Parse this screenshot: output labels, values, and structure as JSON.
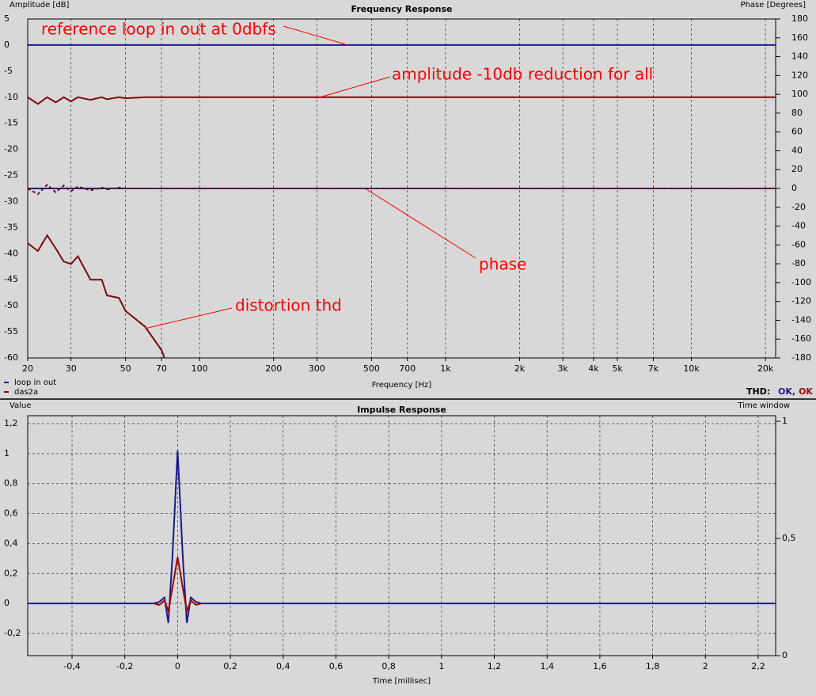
{
  "chart_data": [
    {
      "type": "line",
      "title": "Frequency Response",
      "ylabel": "Amplitude [dB]",
      "y2label": "Phase [Degrees]",
      "xlabel": "Frequency [Hz]",
      "xscale": "log",
      "xlim": [
        20,
        22000
      ],
      "xticks": [
        20,
        30,
        50,
        70,
        100,
        200,
        300,
        500,
        700,
        {
          "value": 1000,
          "label": "1k"
        },
        {
          "value": 2000,
          "label": "2k"
        },
        {
          "value": 3000,
          "label": "3k"
        },
        {
          "value": 4000,
          "label": "4k"
        },
        {
          "value": 5000,
          "label": "5k"
        },
        {
          "value": 7000,
          "label": "7k"
        },
        {
          "value": 10000,
          "label": "10k"
        },
        {
          "value": 20000,
          "label": "20k"
        }
      ],
      "ylim": [
        -60,
        5
      ],
      "yticks": [
        5,
        0,
        -5,
        -10,
        -15,
        -20,
        -25,
        -30,
        -35,
        -40,
        -45,
        -50,
        -55,
        -60
      ],
      "y2lim": [
        -180,
        180
      ],
      "y2ticks": [
        180,
        160,
        140,
        120,
        100,
        80,
        60,
        40,
        20,
        0,
        -20,
        -40,
        -60,
        -80,
        -100,
        -120,
        -140,
        -160,
        -180
      ],
      "grid": [
        "x"
      ],
      "x": [
        20,
        22,
        24,
        26,
        28,
        30,
        32,
        36,
        40,
        42,
        47,
        50,
        60,
        70,
        72,
        100,
        300,
        1000,
        22000
      ],
      "series": [
        {
          "name": "loop in out",
          "color": "#1a1a8c",
          "values": [
            0,
            0,
            0,
            0,
            0,
            0,
            0,
            0,
            0,
            0,
            0,
            0,
            0,
            0,
            0,
            0,
            0,
            0,
            0
          ]
        },
        {
          "name": "das2a",
          "color": "#7a0a0a",
          "values": [
            -10,
            -11.3,
            -10,
            -11,
            -10,
            -10.8,
            -10,
            -10.5,
            -10,
            -10.4,
            -10,
            -10.2,
            -10,
            -10,
            -10,
            -10,
            -10,
            -10,
            -10
          ]
        },
        {
          "color": "#1a1a8c",
          "axis": "y2",
          "values": [
            0,
            0,
            0,
            0,
            0,
            0,
            0,
            0,
            0,
            0,
            0,
            0,
            0,
            0,
            0,
            0,
            0,
            0,
            0
          ]
        },
        {
          "color": "#7a0a0a",
          "axis": "y2",
          "style": "dashed",
          "values": [
            0,
            -6,
            4,
            -4,
            3,
            -3,
            2,
            -2,
            1,
            -1,
            1,
            0,
            0,
            0,
            0,
            0,
            0,
            0,
            0
          ]
        },
        {
          "color": "#7a0a0a",
          "values": [
            -38,
            -39.5,
            -36.5,
            -39,
            -41.5,
            -42,
            -40.5,
            -45,
            -45,
            -48,
            -48.5,
            -51,
            -54,
            -58.5,
            -60,
            null,
            null,
            null,
            null
          ]
        }
      ],
      "annotations": [
        "reference loop in out at 0dbfs",
        "amplitude -10db reduction for all",
        "phase",
        "distortion thd"
      ],
      "thd_label": "THD:",
      "thd_status": [
        {
          "text": "OK,",
          "color": "#1a1a8c"
        },
        {
          "text": "OK",
          "color": "#9a0a0a"
        }
      ]
    },
    {
      "type": "line",
      "title": "Impulse Response",
      "ylabel": "Value",
      "y2label": "Time window",
      "xlabel": "Time [millisec]",
      "xlim": [
        -0.568,
        2.266
      ],
      "xticks": [
        {
          "value": -0.4,
          "label": "-0,4"
        },
        {
          "value": -0.2,
          "label": "-0,2"
        },
        0,
        {
          "value": 0.2,
          "label": "0,2"
        },
        {
          "value": 0.4,
          "label": "0,4"
        },
        {
          "value": 0.6,
          "label": "0,6"
        },
        {
          "value": 0.8,
          "label": "0,8"
        },
        1,
        {
          "value": 1.2,
          "label": "1,2"
        },
        {
          "value": 1.4,
          "label": "1,4"
        },
        {
          "value": 1.6,
          "label": "1,6"
        },
        {
          "value": 1.8,
          "label": "1,8"
        },
        2,
        {
          "value": 2.2,
          "label": "2,2"
        }
      ],
      "ylim": [
        -0.348,
        1.253
      ],
      "yticks": [
        {
          "value": 1.2,
          "label": "1,2"
        },
        1,
        {
          "value": 0.8,
          "label": "0,8"
        },
        {
          "value": 0.6,
          "label": "0,6"
        },
        {
          "value": 0.4,
          "label": "0,4"
        },
        {
          "value": 0.2,
          "label": "0,2"
        },
        0,
        {
          "value": -0.2,
          "label": "-0,2"
        }
      ],
      "y2lim": [
        0,
        1.024
      ],
      "y2ticks": [
        1,
        {
          "value": 0.5,
          "label": "0,5"
        },
        0
      ],
      "grid": [
        "x",
        "y"
      ],
      "x": [
        -0.568,
        -0.09,
        -0.07,
        -0.05,
        -0.035,
        -0.02,
        0,
        0.02,
        0.035,
        0.05,
        0.07,
        0.09,
        2.266
      ],
      "series": [
        {
          "color": "#1a1a8c",
          "values": [
            0,
            0,
            0.01,
            0.04,
            -0.13,
            0.3,
            1.02,
            0.3,
            -0.13,
            0.04,
            0.01,
            0,
            0
          ]
        },
        {
          "color": "#9a0a0a",
          "values": [
            null,
            0,
            -0.01,
            0.02,
            -0.05,
            0.1,
            0.31,
            0.1,
            -0.05,
            0.02,
            -0.01,
            0,
            null
          ]
        }
      ]
    }
  ]
}
